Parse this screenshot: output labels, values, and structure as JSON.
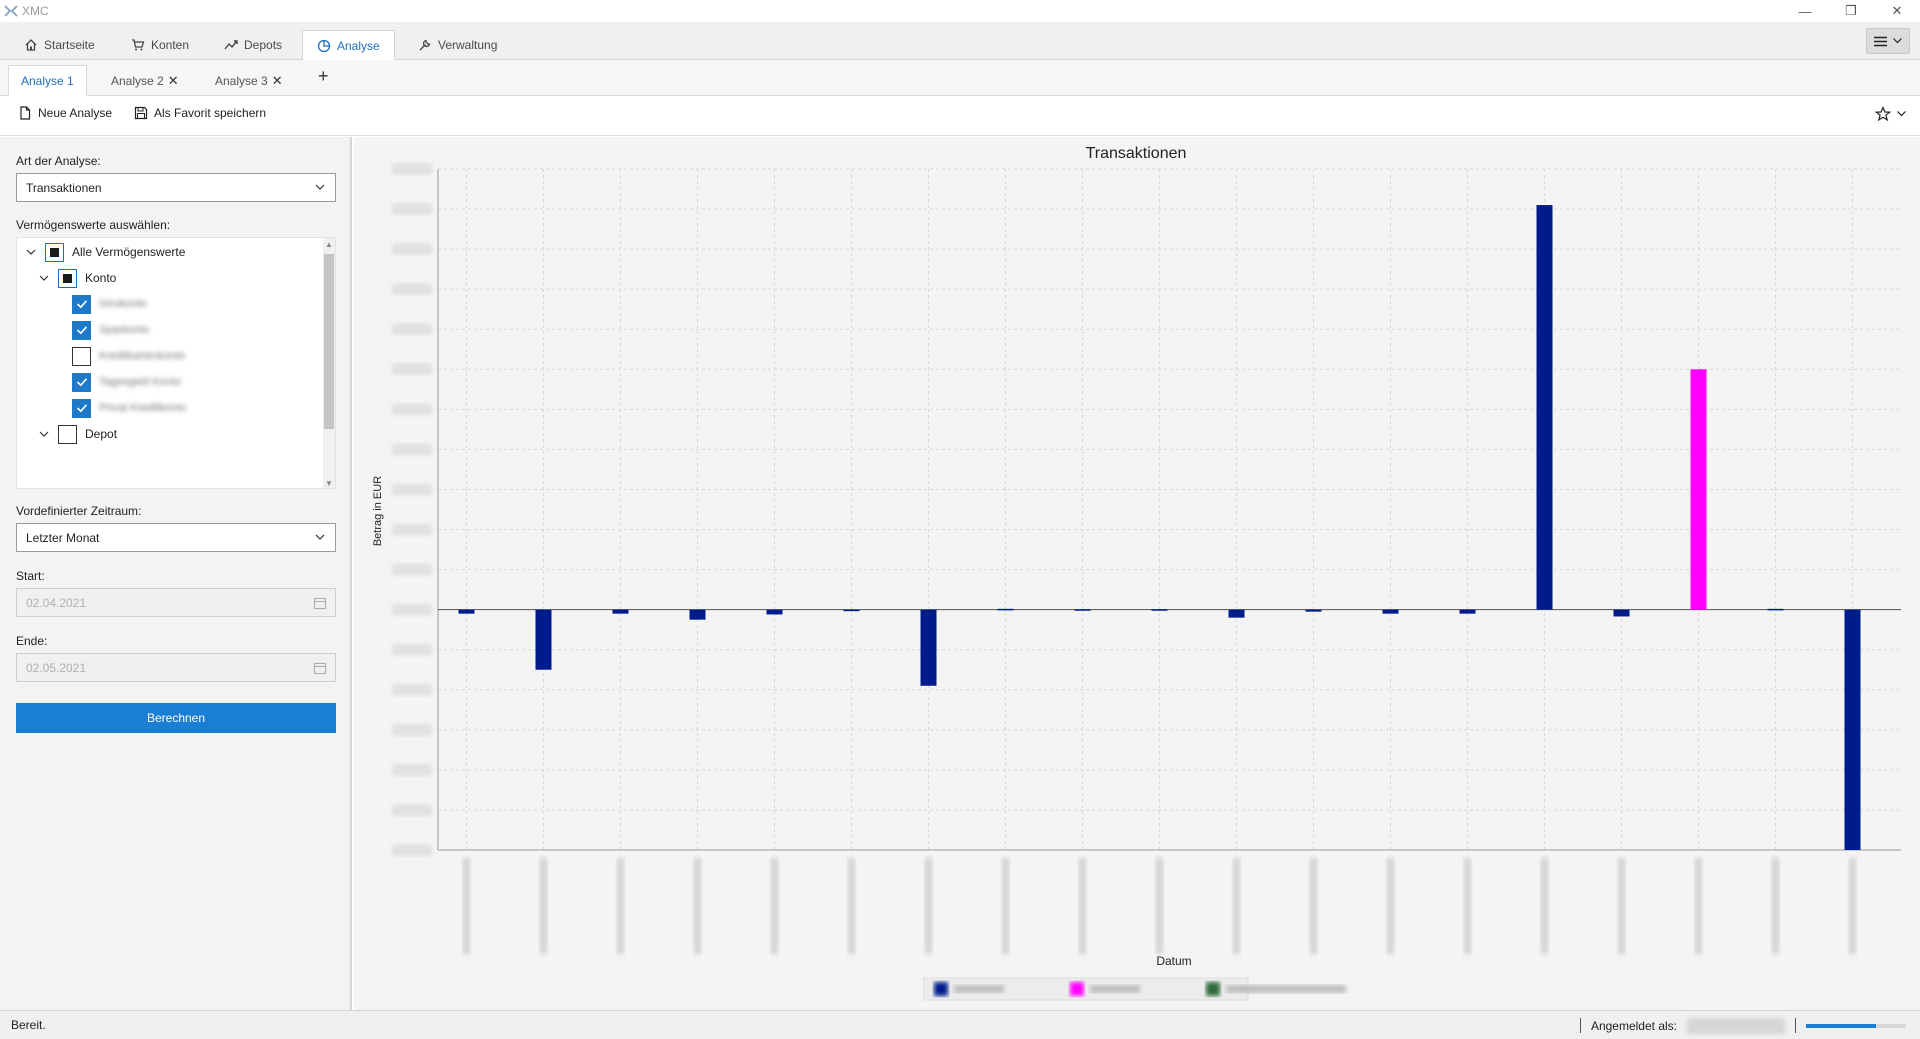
{
  "window": {
    "title": "XMC",
    "minimize": "—",
    "restore": "❐",
    "close": "✕"
  },
  "main_nav": {
    "tabs": [
      {
        "label": "Startseite",
        "icon": "home-icon"
      },
      {
        "label": "Konten",
        "icon": "cart-icon"
      },
      {
        "label": "Depots",
        "icon": "trend-icon"
      },
      {
        "label": "Analyse",
        "icon": "pie-icon",
        "active": true
      },
      {
        "label": "Verwaltung",
        "icon": "wrench-icon"
      }
    ]
  },
  "sub_tabs": {
    "tabs": [
      {
        "label": "Analyse 1",
        "active": true,
        "closable": false
      },
      {
        "label": "Analyse 2",
        "closable": true
      },
      {
        "label": "Analyse 3",
        "closable": true
      }
    ],
    "close_glyph": "✕",
    "add_glyph": "+"
  },
  "toolbar": {
    "new_label": "Neue Analyse",
    "favorite_label": "Als Favorit speichern"
  },
  "form": {
    "analysis_type_label": "Art der Analyse:",
    "analysis_type_value": "Transaktionen",
    "assets_label": "Vermögenswerte auswählen:",
    "tree": {
      "root": "Alle Vermögenswerte",
      "konto": "Konto",
      "konto_items_checked": [
        true,
        true,
        false,
        true,
        true
      ],
      "konto_items_redacted": [
        "Girokonto",
        "Sparkonto",
        "Kreditkartenkonto",
        "Tagesgeld Konto",
        "Privat Kreditkonto"
      ],
      "depot": "Depot"
    },
    "period_label": "Vordefinierter Zeitraum:",
    "period_value": "Letzter Monat",
    "start_label": "Start:",
    "start_value": "02.04.2021",
    "end_label": "Ende:",
    "end_value": "02.05.2021",
    "calc_label": "Berechnen"
  },
  "status": {
    "text": "Bereit.",
    "logged_in_label": "Angemeldet als:",
    "progress": 0.7
  },
  "colors": {
    "accent": "#1a7fd4",
    "series_1": "#001b8c",
    "series_2": "#ff00ff",
    "series_3": "#2e6b3a"
  },
  "chart_data": {
    "type": "bar",
    "title": "Transaktionen",
    "xlabel": "Datum",
    "ylabel": "Betrag in EUR",
    "ylim": [
      -6,
      11
    ],
    "ticks_redacted": true,
    "legend_redacted": true,
    "grid": true,
    "legend_position": "bottom",
    "categories": [
      "",
      "",
      "",
      "",
      "",
      "",
      "",
      "",
      "",
      "",
      "",
      "",
      "",
      "",
      "",
      "",
      "",
      "",
      ""
    ],
    "series": [
      {
        "values": [
          -0.1,
          -1.5,
          -0.1,
          -0.25,
          -0.12,
          -0.02,
          -1.9,
          0.02,
          0.01,
          0.01,
          -0.2,
          -0.05,
          -0.1,
          -0.1,
          10.1,
          -0.17,
          0,
          0.02,
          -6
        ]
      },
      {
        "values": [
          0,
          0,
          0,
          0,
          0,
          0,
          0,
          0,
          0,
          0,
          0,
          0,
          0,
          0,
          0,
          0,
          6,
          0,
          0
        ]
      }
    ]
  }
}
